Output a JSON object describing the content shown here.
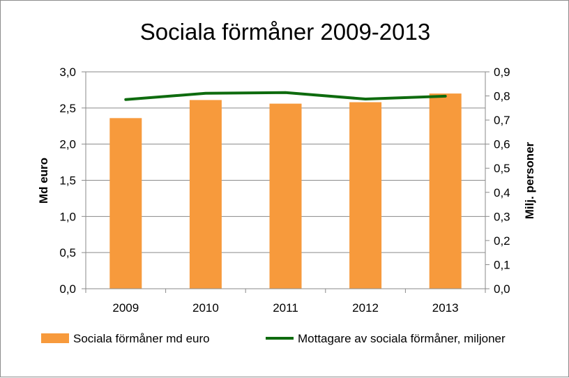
{
  "chart_data": {
    "type": "bar",
    "title": "Sociala förmåner 2009-2013",
    "categories": [
      "2009",
      "2010",
      "2011",
      "2012",
      "2013"
    ],
    "ylabel": "Md euro",
    "y2label": "Milj. personer",
    "ylim": [
      0,
      3.0
    ],
    "y2lim": [
      0,
      0.9
    ],
    "yticks": [
      "0,0",
      "0,5",
      "1,0",
      "1,5",
      "2,0",
      "2,5",
      "3,0"
    ],
    "y2ticks": [
      "0,0",
      "0,1",
      "0,2",
      "0,3",
      "0,4",
      "0,5",
      "0,6",
      "0,7",
      "0,8",
      "0,9"
    ],
    "grid": true,
    "legend": "bottom",
    "series": [
      {
        "name": "Sociala förmåner md euro",
        "type": "bar",
        "axis": "left",
        "color": "#F79A3C",
        "values": [
          2.36,
          2.61,
          2.56,
          2.58,
          2.7
        ]
      },
      {
        "name": "Mottagare av sociala förmåner, miljoner",
        "type": "line",
        "axis": "right",
        "color": "#0E6B0E",
        "values": [
          0.785,
          0.811,
          0.814,
          0.787,
          0.799
        ]
      }
    ]
  }
}
